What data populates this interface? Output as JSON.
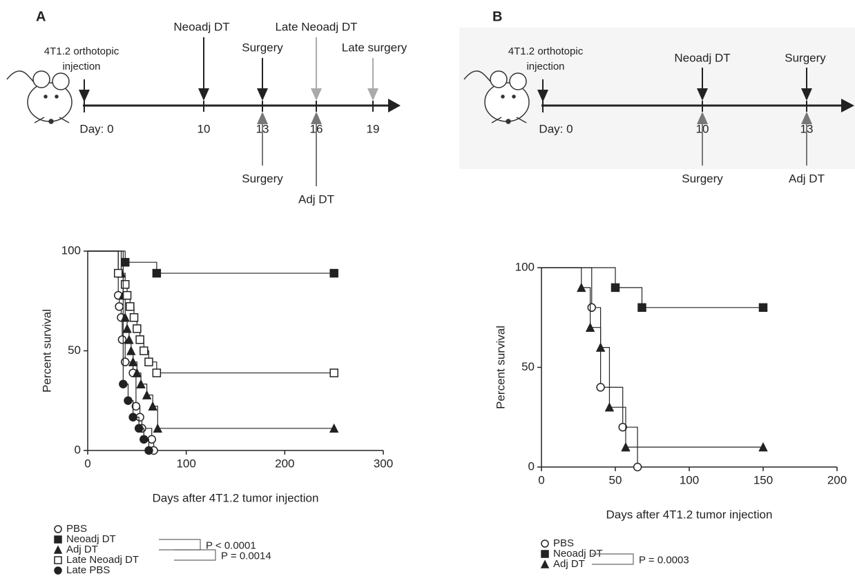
{
  "panels": [
    {
      "label": "A",
      "timeline": {
        "injection": [
          "4T1.2 orthotopic",
          "injection"
        ],
        "days": [
          "Day: 0",
          "10",
          "13",
          "16",
          "19"
        ],
        "above": [
          "Neoadj DT",
          "Surgery",
          "Late Neoadj DT",
          "Late surgery"
        ],
        "below": [
          "Surgery",
          "Adj DT"
        ]
      }
    },
    {
      "label": "B",
      "timeline": {
        "injection": [
          "4T1.2 orthotopic",
          "injection"
        ],
        "days": [
          "Day: 0",
          "10",
          "13"
        ],
        "above": [
          "Neoadj DT",
          "Surgery"
        ],
        "below": [
          "Surgery",
          "Adj DT"
        ]
      }
    }
  ],
  "chart_data": [
    {
      "type": "survival",
      "xlabel": "Days after 4T1.2 tumor injection",
      "ylabel": "Percent survival",
      "xlim": [
        0,
        300
      ],
      "xticks": [
        0,
        100,
        200,
        300
      ],
      "ylim": [
        0,
        100
      ],
      "yticks": [
        0,
        50,
        100
      ],
      "series": [
        {
          "name": "PBS",
          "marker": "circle-open",
          "color": "#222",
          "x": [
            0,
            31,
            32,
            34,
            35,
            38,
            46,
            49,
            53,
            55,
            65,
            67
          ],
          "values": [
            100,
            77.8,
            72.2,
            66.7,
            55.6,
            44.4,
            38.9,
            22.2,
            16.7,
            11.1,
            5.6,
            0
          ]
        },
        {
          "name": "Neoadj DT",
          "marker": "square-filled",
          "color": "#222",
          "x": [
            0,
            38,
            70,
            250
          ],
          "values": [
            100,
            94.4,
            88.9,
            88.9
          ]
        },
        {
          "name": "Adj DT",
          "marker": "triangle-filled",
          "color": "#222",
          "x": [
            0,
            34,
            36,
            38,
            40,
            42,
            44,
            46,
            50,
            54,
            60,
            66,
            71,
            250
          ],
          "values": [
            100,
            88.9,
            77.8,
            66.7,
            61.1,
            55.6,
            50,
            44.4,
            38.9,
            33.3,
            27.8,
            22.2,
            11.1,
            11.1
          ]
        },
        {
          "name": "Late Neoadj DT",
          "marker": "square-open",
          "color": "#222",
          "x": [
            0,
            31,
            38,
            40,
            43,
            47,
            50,
            53,
            57,
            62,
            70,
            250
          ],
          "values": [
            100,
            88.9,
            83.3,
            77.8,
            72.2,
            66.7,
            61.1,
            55.6,
            50,
            44.4,
            38.9,
            38.9
          ]
        },
        {
          "name": "Late PBS",
          "marker": "circle-filled",
          "color": "#222",
          "x": [
            0,
            36,
            41,
            46,
            52,
            57,
            62
          ],
          "values": [
            100,
            33.3,
            25,
            16.7,
            11.1,
            5.6,
            0
          ]
        }
      ],
      "annotations": [
        "P < 0.0001",
        "P = 0.0014"
      ]
    },
    {
      "type": "survival",
      "xlabel": "Days after 4T1.2 tumor injection",
      "ylabel": "Percent survival",
      "xlim": [
        0,
        200
      ],
      "xticks": [
        0,
        50,
        100,
        150,
        200
      ],
      "ylim": [
        0,
        100
      ],
      "yticks": [
        0,
        50,
        100
      ],
      "series": [
        {
          "name": "PBS",
          "marker": "circle-open",
          "color": "#222",
          "x": [
            0,
            34,
            40,
            55,
            65
          ],
          "values": [
            100,
            80,
            40,
            20,
            0
          ]
        },
        {
          "name": "Neoadj DT",
          "marker": "square-filled",
          "color": "#222",
          "x": [
            0,
            50,
            68,
            150
          ],
          "values": [
            100,
            90,
            80,
            80
          ]
        },
        {
          "name": "Adj DT",
          "marker": "triangle-filled",
          "color": "#222",
          "x": [
            0,
            27,
            33,
            40,
            46,
            57,
            150
          ],
          "values": [
            100,
            90,
            70,
            60,
            30,
            10,
            10
          ]
        }
      ],
      "annotations": [
        "P = 0.0003"
      ]
    }
  ]
}
